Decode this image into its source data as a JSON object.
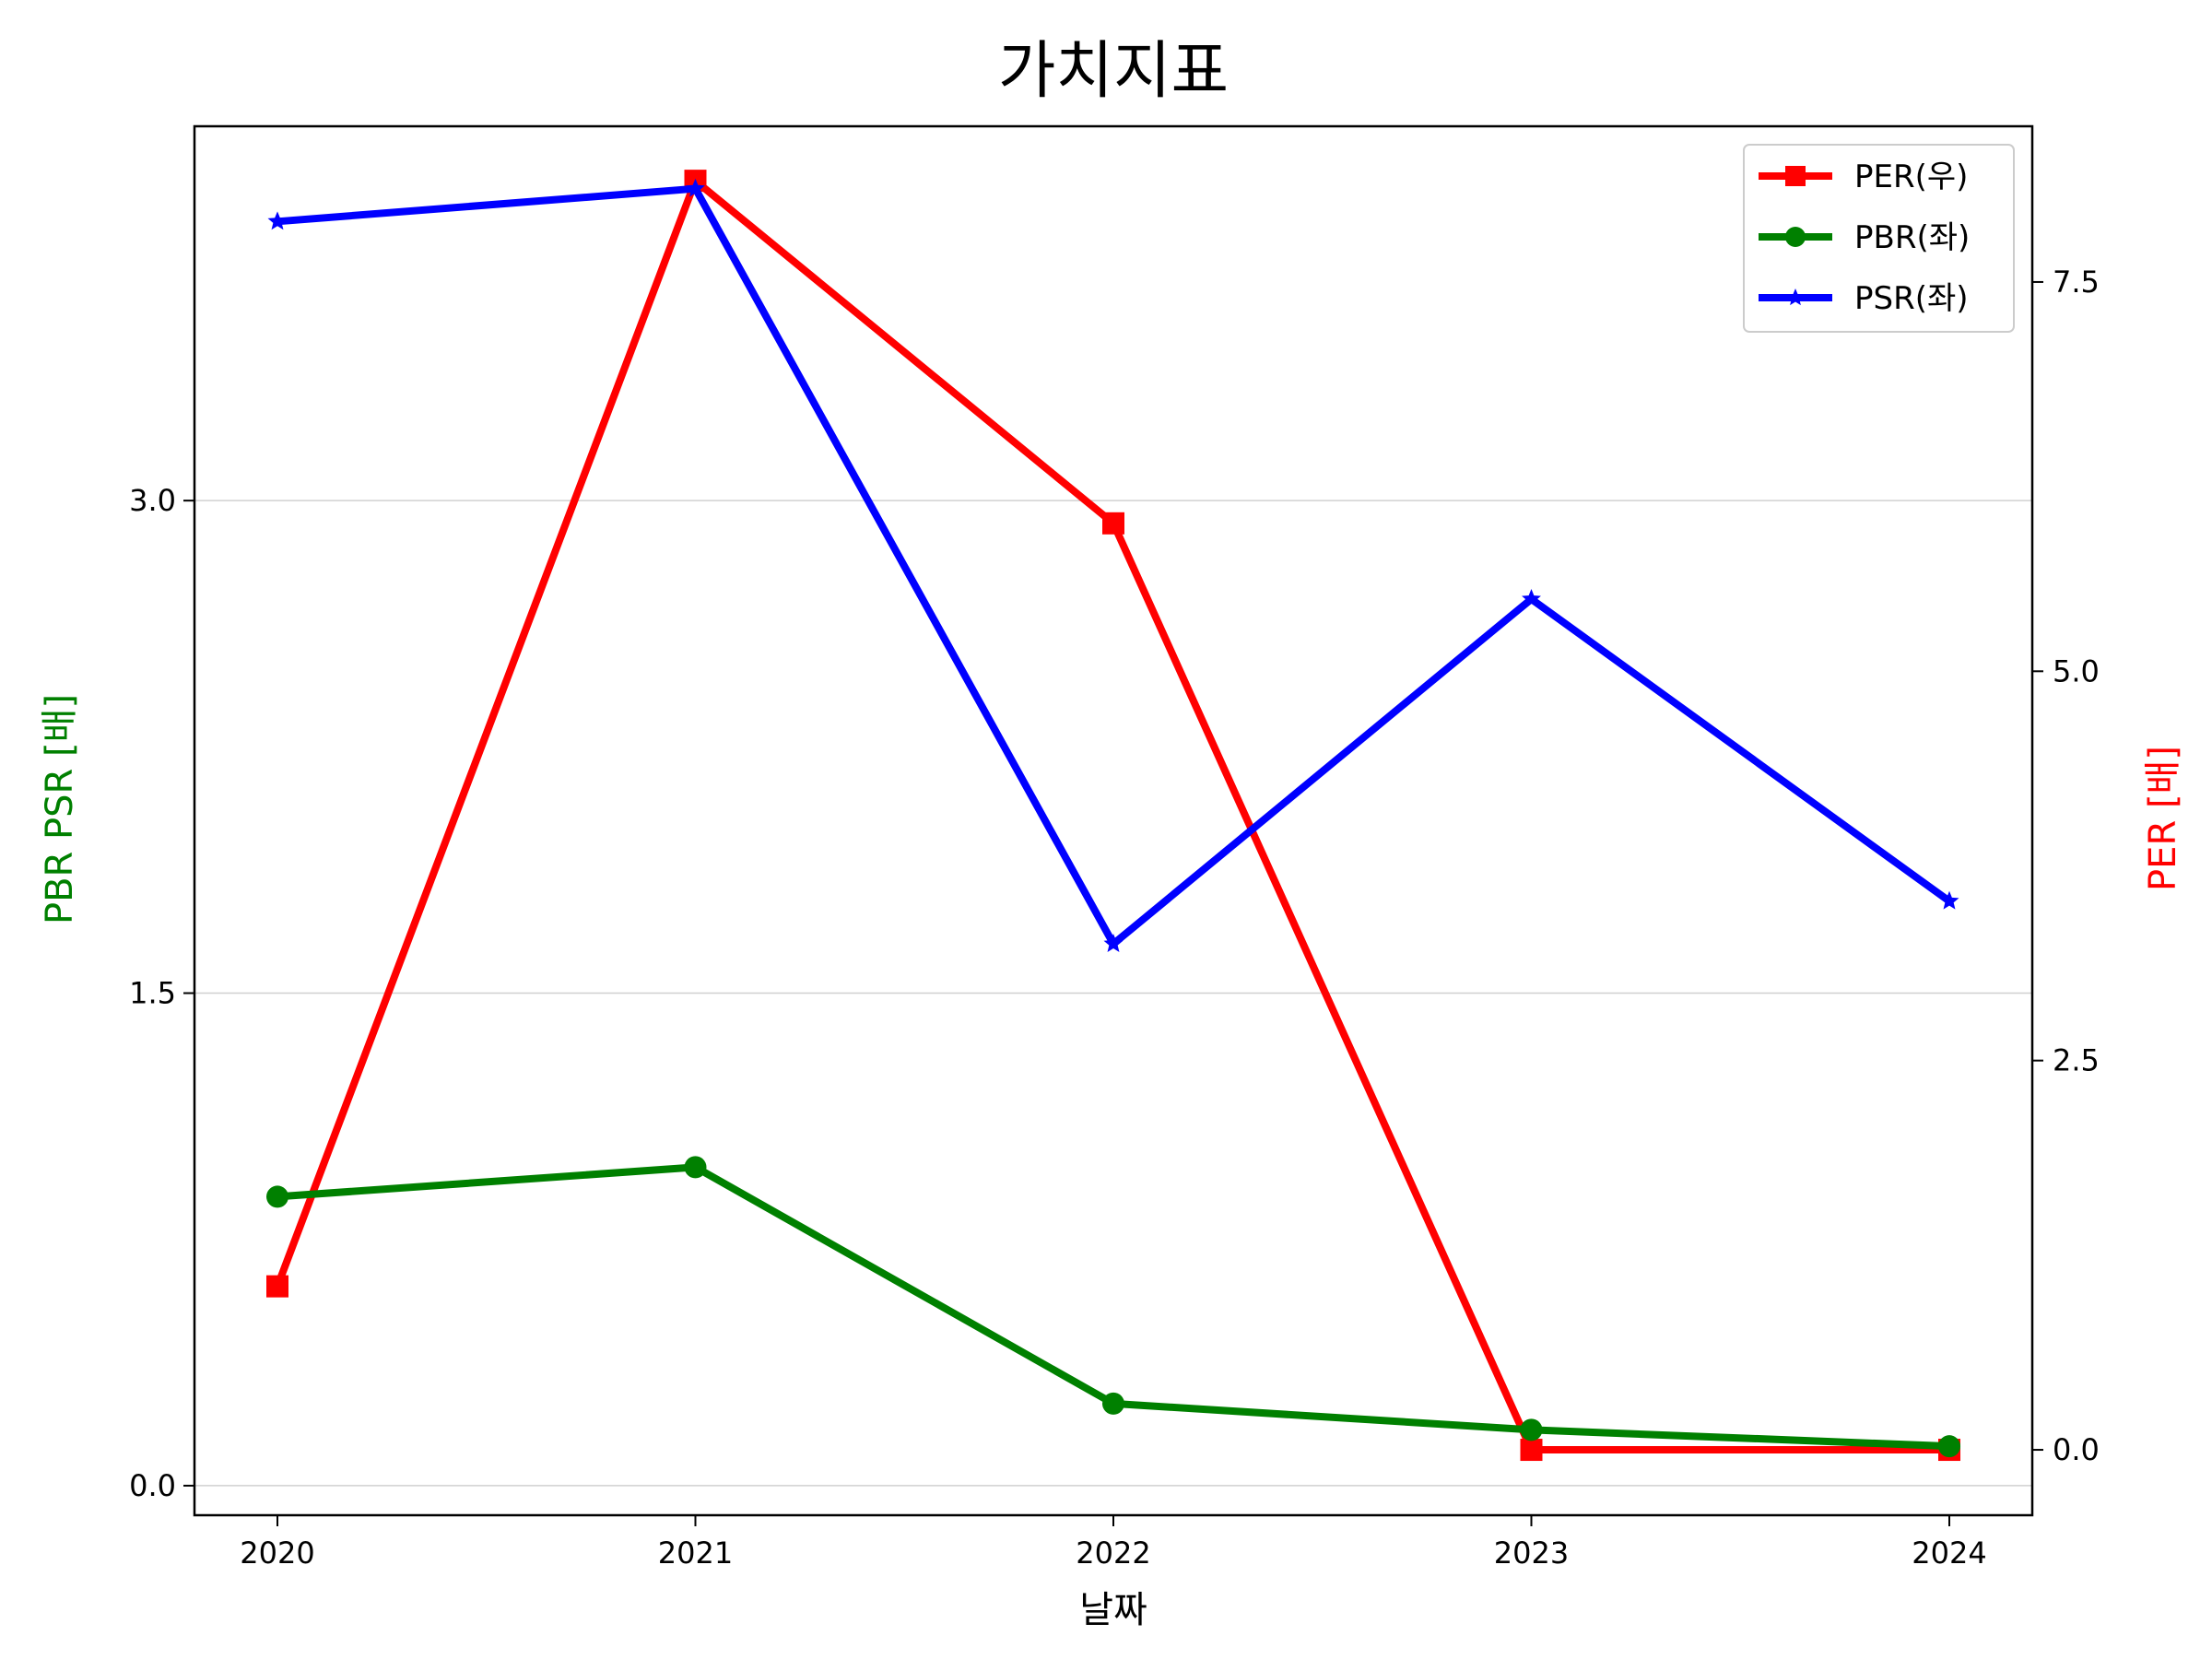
{
  "chart_data": {
    "type": "line",
    "title": "가치지표",
    "xlabel": "날짜",
    "ylabel_left": "PBR PSR [배]",
    "ylabel_right": "PER [배]",
    "x": [
      "2020",
      "2021",
      "2022",
      "2023",
      "2024"
    ],
    "ylim_left": [
      -0.09,
      4.14
    ],
    "yticks_left": [
      "0.0",
      "1.5",
      "3.0"
    ],
    "ylim_right": [
      -0.42,
      8.5
    ],
    "yticks_right": [
      "0.0",
      "2.5",
      "5.0",
      "7.5"
    ],
    "grid": "horizontal (left axis)",
    "legend_position": "top-right",
    "series": [
      {
        "name": "PER(우)",
        "axis": "right",
        "color": "#ff0000",
        "marker": "square",
        "values": [
          1.05,
          8.15,
          5.95,
          0.0,
          0.0
        ]
      },
      {
        "name": "PBR(좌)",
        "axis": "left",
        "color": "#008000",
        "marker": "circle",
        "values": [
          0.88,
          0.97,
          0.25,
          0.17,
          0.12
        ]
      },
      {
        "name": "PSR(좌)",
        "axis": "left",
        "color": "#0000ff",
        "marker": "star",
        "values": [
          3.85,
          3.95,
          1.65,
          2.7,
          1.78
        ]
      }
    ]
  },
  "colors": {
    "ylabel_left": "#008000",
    "ylabel_right": "#ff0000"
  }
}
